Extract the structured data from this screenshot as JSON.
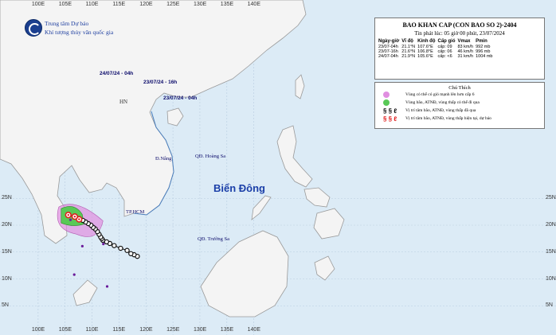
{
  "agency": {
    "line1": "Trung tâm Dự báo",
    "line2": "Khí tượng thủy văn quốc gia"
  },
  "bulletin": {
    "title": "BAO KHAN CAP (CON BAO SO 2)-2404",
    "issued": "Tin phát lúc: 05 giờ 00 phút, 23/07/2024",
    "headers": [
      "Ngày-giờ",
      "Vĩ độ",
      "Kinh độ",
      "Cấp gió",
      "Vmax",
      "Pmin"
    ],
    "rows": [
      [
        "23/07-04h",
        "21.1°N",
        "107.6°E",
        "cấp: 09",
        "83 km/h",
        "992 mb"
      ],
      [
        "23/07-16h",
        "21.6°N",
        "106.8°E",
        "cấp: 06",
        "46 km/h",
        "996 mb"
      ],
      [
        "24/07-04h",
        "21.9°N",
        "105.6°E",
        "cấp: <6",
        "31 km/h",
        "1004 mb"
      ]
    ]
  },
  "legend": {
    "title": "Chú Thích",
    "items": [
      {
        "text": "Vùng có thể có gió mạnh lên hơn cấp 6",
        "color": "#e08ee0"
      },
      {
        "text": "Vùng bão, ATNĐ, vùng thấp có thể đi qua",
        "color": "#59c957"
      },
      {
        "text": "Vị trí tâm bão, ATNĐ, vùng thấp đã qua",
        "color": "#111111"
      },
      {
        "text": "Vị trí tâm bão, ATNĐ, vùng thấp hiện tại, dự báo",
        "color": "#e02020"
      }
    ]
  },
  "labels": {
    "forecast_24_04": "24/07/24 - 04h",
    "forecast_23_16": "23/07/24 - 16h",
    "current_23_04": "23/07/24 - 04h",
    "hanoi": "HN",
    "danang": "Đ.Nẵng",
    "hcm": "TP.HCM",
    "hoangsa": "QĐ. Hoàng Sa",
    "truongsa": "QĐ. Trường Sa",
    "sea": "Biển Đông"
  },
  "axes": {
    "lon": [
      "100E",
      "105E",
      "110E",
      "115E",
      "120E",
      "125E",
      "130E",
      "135E",
      "140E"
    ],
    "lat": [
      "25N",
      "20N",
      "15N",
      "10N",
      "5N"
    ]
  },
  "track": {
    "past": [
      [
        118.4,
        14.2
      ],
      [
        117.8,
        14.5
      ],
      [
        117.2,
        14.7
      ],
      [
        116.5,
        15.3
      ],
      [
        115.3,
        15.7
      ],
      [
        114.1,
        16.2
      ],
      [
        113.3,
        16.6
      ],
      [
        112.7,
        16.9
      ],
      [
        112.0,
        17.2
      ],
      [
        111.8,
        17.5
      ],
      [
        111.6,
        17.8
      ],
      [
        111.3,
        18.3
      ],
      [
        111.0,
        18.8
      ],
      [
        110.6,
        19.3
      ],
      [
        110.2,
        19.6
      ],
      [
        109.8,
        20.0
      ],
      [
        109.3,
        20.3
      ],
      [
        108.8,
        20.6
      ],
      [
        108.3,
        20.9
      ]
    ],
    "current": [
      107.6,
      21.1
    ],
    "forecast": [
      [
        106.8,
        21.6
      ],
      [
        105.6,
        21.9
      ]
    ]
  },
  "colors": {
    "sea": "#dcebf6",
    "land": "#f4f4f4",
    "track": "#111111",
    "center": "#e02020",
    "wind": "#e08ee0",
    "cone": "#59c957"
  }
}
